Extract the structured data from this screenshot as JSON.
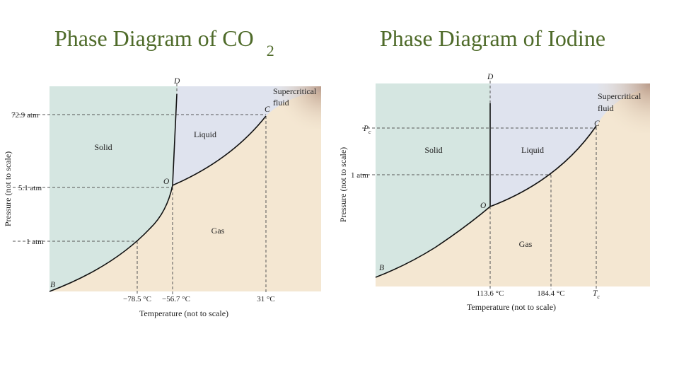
{
  "titles": {
    "left": "Phase Diagram of CO",
    "left_subscript": "2",
    "right": "Phase Diagram of Iodine"
  },
  "colors": {
    "title": "#4f6b2a",
    "solid": "#d5e6e1",
    "liquid": "#dfe3ee",
    "gas": "#f4e7d2",
    "supercritical": "#b99a88"
  },
  "co2": {
    "y_axis_title": "Pressure (not to scale)",
    "x_axis_title": "Temperature (not to scale)",
    "pressure_labels": [
      "72.9 atm",
      "5.1 atm",
      "1 atm"
    ],
    "temperature_labels": [
      "−78.5 °C",
      "−56.7 °C",
      "31 °C"
    ],
    "regions": {
      "solid": "Solid",
      "liquid": "Liquid",
      "gas": "Gas",
      "supercritical_1": "Supercritical",
      "supercritical_2": "fluid"
    },
    "points": {
      "D": "D",
      "C": "C",
      "O": "O",
      "B": "B"
    }
  },
  "iodine": {
    "y_axis_title": "Pressure (not to scale)",
    "x_axis_title": "Temperature (not to scale)",
    "pressure_labels": {
      "pc": "P",
      "pc_sub": "c",
      "one_atm": "1 atm"
    },
    "temperature_labels": {
      "t1": "113.6 °C",
      "t2": "184.4 °C",
      "tc": "T",
      "tc_sub": "c"
    },
    "regions": {
      "solid": "Solid",
      "liquid": "Liquid",
      "gas": "Gas",
      "supercritical_1": "Supercritical",
      "supercritical_2": "fluid"
    },
    "points": {
      "D": "D",
      "C": "C",
      "O": "O",
      "B": "B"
    }
  }
}
